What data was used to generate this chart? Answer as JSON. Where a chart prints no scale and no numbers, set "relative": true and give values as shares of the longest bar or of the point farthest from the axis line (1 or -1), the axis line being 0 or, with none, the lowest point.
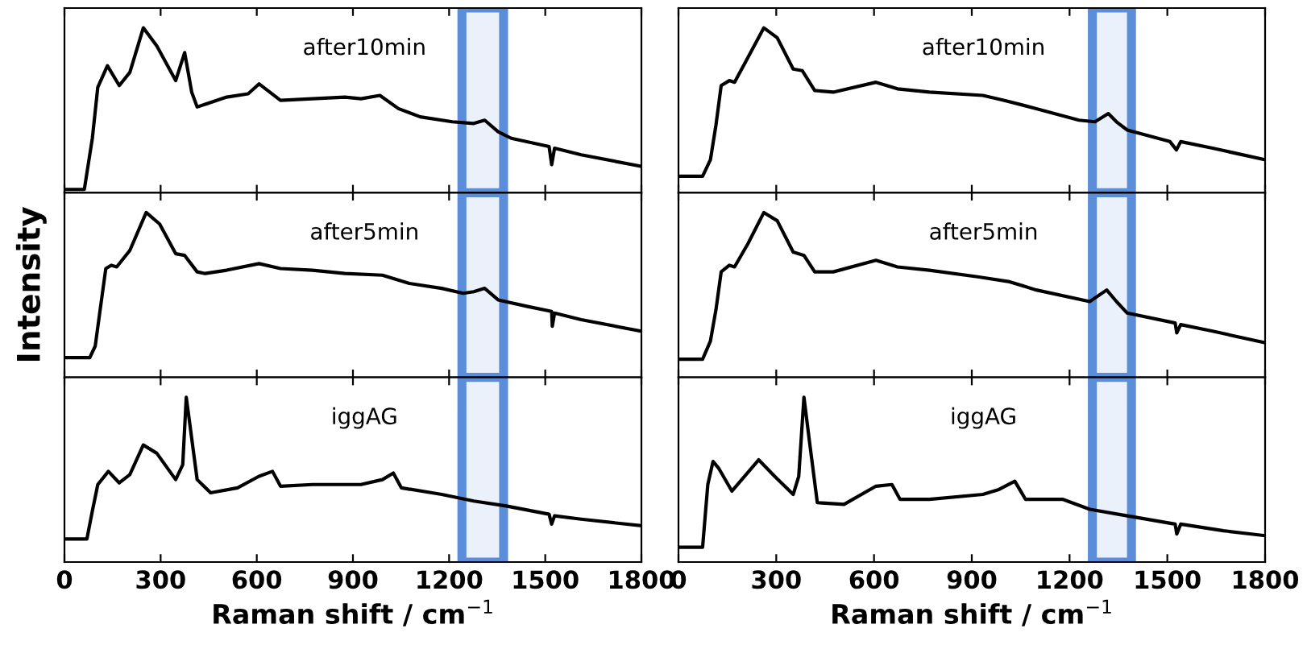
{
  "chart_data": [
    {
      "type": "line",
      "relative": true,
      "annotations": [
        "after10min"
      ],
      "xlim": [
        0,
        1800
      ],
      "xticks": [
        0,
        300,
        600,
        900,
        1200,
        1500,
        1800
      ],
      "tick_labels": false,
      "bands": [
        {
          "axis": "x",
          "from": 1240,
          "to": 1370,
          "color": "#5b8dd9"
        }
      ],
      "series": [
        {
          "color": "#000000",
          "x": [
            0,
            62,
            87,
            104,
            134,
            171,
            204,
            246,
            288,
            347,
            375,
            397,
            414,
            506,
            573,
            607,
            674,
            774,
            875,
            925,
            984,
            1042,
            1110,
            1210,
            1277,
            1311,
            1353,
            1394,
            1512,
            1520,
            1529,
            1612,
            1800
          ],
          "values": [
            0.02,
            0.02,
            0.33,
            0.64,
            0.77,
            0.65,
            0.73,
            1.0,
            0.89,
            0.68,
            0.85,
            0.61,
            0.52,
            0.58,
            0.6,
            0.66,
            0.56,
            0.57,
            0.58,
            0.57,
            0.59,
            0.51,
            0.46,
            0.43,
            0.42,
            0.44,
            0.37,
            0.33,
            0.28,
            0.17,
            0.27,
            0.23,
            0.16
          ]
        }
      ]
    },
    {
      "type": "line",
      "relative": true,
      "annotations": [
        "after10min"
      ],
      "xlim": [
        0,
        1800
      ],
      "xticks": [
        0,
        300,
        600,
        900,
        1200,
        1500,
        1800
      ],
      "tick_labels": false,
      "bands": [
        {
          "axis": "x",
          "from": 1270,
          "to": 1390,
          "color": "#5b8dd9"
        }
      ],
      "series": [
        {
          "color": "#000000",
          "x": [
            0,
            74,
            98,
            115,
            131,
            156,
            172,
            213,
            262,
            303,
            352,
            380,
            418,
            475,
            606,
            672,
            770,
            934,
            1000,
            1098,
            1229,
            1278,
            1319,
            1344,
            1377,
            1508,
            1528,
            1541,
            1639,
            1800
          ],
          "values": [
            0.1,
            0.1,
            0.2,
            0.41,
            0.65,
            0.68,
            0.67,
            0.82,
            1.0,
            0.94,
            0.75,
            0.74,
            0.62,
            0.61,
            0.67,
            0.63,
            0.61,
            0.59,
            0.56,
            0.51,
            0.44,
            0.43,
            0.48,
            0.43,
            0.38,
            0.31,
            0.26,
            0.31,
            0.27,
            0.2
          ]
        }
      ]
    },
    {
      "type": "line",
      "relative": true,
      "annotations": [
        "after5min"
      ],
      "ylabel": "Intensity",
      "xlim": [
        0,
        1800
      ],
      "xticks": [
        0,
        300,
        600,
        900,
        1200,
        1500,
        1800
      ],
      "tick_labels": false,
      "bands": [
        {
          "axis": "x",
          "from": 1240,
          "to": 1370,
          "color": "#5b8dd9"
        }
      ],
      "series": [
        {
          "color": "#000000",
          "x": [
            0,
            79,
            96,
            112,
            129,
            146,
            163,
            204,
            255,
            297,
            347,
            375,
            414,
            439,
            506,
            607,
            674,
            774,
            875,
            992,
            1076,
            1177,
            1244,
            1277,
            1311,
            1353,
            1445,
            1520,
            1522,
            1529,
            1612,
            1800
          ],
          "values": [
            0.12,
            0.12,
            0.19,
            0.42,
            0.66,
            0.68,
            0.67,
            0.77,
            1.0,
            0.93,
            0.75,
            0.74,
            0.64,
            0.63,
            0.65,
            0.69,
            0.66,
            0.65,
            0.63,
            0.62,
            0.57,
            0.54,
            0.51,
            0.52,
            0.54,
            0.47,
            0.43,
            0.4,
            0.31,
            0.39,
            0.35,
            0.28
          ]
        }
      ]
    },
    {
      "type": "line",
      "relative": true,
      "annotations": [
        "after5min"
      ],
      "xlim": [
        0,
        1800
      ],
      "xticks": [
        0,
        300,
        600,
        900,
        1200,
        1500,
        1800
      ],
      "tick_labels": false,
      "bands": [
        {
          "axis": "x",
          "from": 1270,
          "to": 1390,
          "color": "#5b8dd9"
        }
      ],
      "series": [
        {
          "color": "#000000",
          "x": [
            0,
            74,
            98,
            115,
            131,
            156,
            172,
            213,
            262,
            303,
            352,
            385,
            418,
            475,
            606,
            672,
            770,
            918,
            1016,
            1098,
            1262,
            1314,
            1344,
            1377,
            1524,
            1529,
            1541,
            1639,
            1800
          ],
          "values": [
            0.11,
            0.11,
            0.22,
            0.41,
            0.64,
            0.68,
            0.67,
            0.81,
            1.0,
            0.95,
            0.76,
            0.74,
            0.64,
            0.64,
            0.71,
            0.67,
            0.65,
            0.61,
            0.58,
            0.53,
            0.46,
            0.53,
            0.46,
            0.39,
            0.33,
            0.27,
            0.32,
            0.28,
            0.21
          ]
        }
      ]
    },
    {
      "type": "line",
      "relative": true,
      "annotations": [
        "iggAG"
      ],
      "xlabel": "Raman shift / cm$^{−1}$",
      "xlim": [
        0,
        1800
      ],
      "xticks": [
        0,
        300,
        600,
        900,
        1200,
        1500,
        1800
      ],
      "tick_labels": "x",
      "bands": [
        {
          "axis": "x",
          "from": 1240,
          "to": 1370,
          "color": "#5b8dd9"
        }
      ],
      "series": [
        {
          "color": "#000000",
          "x": [
            0,
            70,
            87,
            104,
            137,
            171,
            204,
            246,
            288,
            347,
            369,
            380,
            397,
            414,
            456,
            540,
            607,
            649,
            674,
            774,
            925,
            992,
            1026,
            1051,
            1177,
            1277,
            1378,
            1512,
            1520,
            1529,
            1612,
            1800
          ],
          "values": [
            0.14,
            0.14,
            0.31,
            0.47,
            0.55,
            0.48,
            0.53,
            0.71,
            0.66,
            0.5,
            0.59,
            1.0,
            0.75,
            0.5,
            0.42,
            0.45,
            0.52,
            0.55,
            0.46,
            0.47,
            0.47,
            0.5,
            0.54,
            0.45,
            0.41,
            0.37,
            0.34,
            0.29,
            0.23,
            0.28,
            0.26,
            0.22
          ]
        }
      ]
    },
    {
      "type": "line",
      "relative": true,
      "annotations": [
        "iggAG"
      ],
      "xlabel": "Raman shift / cm$^{−1}$",
      "xlim": [
        0,
        1800
      ],
      "xticks": [
        0,
        300,
        600,
        900,
        1200,
        1500,
        1800
      ],
      "tick_labels": "x",
      "bands": [
        {
          "axis": "x",
          "from": 1270,
          "to": 1390,
          "color": "#5b8dd9"
        }
      ],
      "series": [
        {
          "color": "#000000",
          "x": [
            0,
            74,
            90,
            106,
            123,
            164,
            246,
            295,
            352,
            369,
            385,
            402,
            426,
            508,
            606,
            655,
            680,
            770,
            934,
            983,
            1032,
            1065,
            1180,
            1262,
            1377,
            1524,
            1529,
            1541,
            1672,
            1800
          ],
          "values": [
            0.09,
            0.09,
            0.47,
            0.61,
            0.57,
            0.43,
            0.62,
            0.52,
            0.41,
            0.52,
            1.0,
            0.73,
            0.36,
            0.35,
            0.46,
            0.47,
            0.38,
            0.38,
            0.41,
            0.44,
            0.49,
            0.38,
            0.38,
            0.32,
            0.28,
            0.23,
            0.17,
            0.23,
            0.19,
            0.16
          ]
        }
      ]
    }
  ]
}
